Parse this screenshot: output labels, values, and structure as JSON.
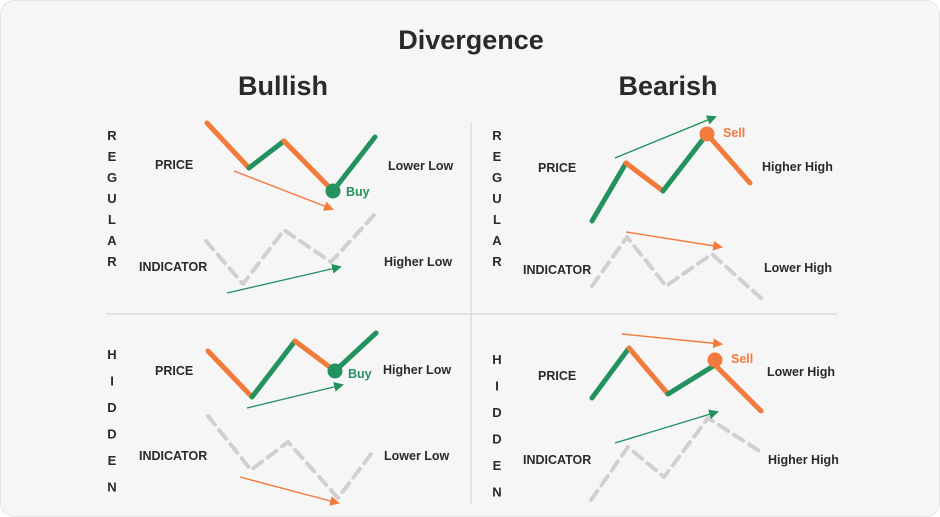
{
  "title": "Divergence",
  "columns": {
    "bullish": "Bullish",
    "bearish": "Bearish"
  },
  "rows": {
    "regular": "REGULAR",
    "hidden": "HIDDEN"
  },
  "colors": {
    "green": "#23925f",
    "orange": "#f27a3b",
    "gray": "#d0d0d0",
    "divider": "#d6d6d6"
  },
  "panels": {
    "bullish_regular": {
      "price": "PRICE",
      "indicator": "INDICATOR",
      "price_note": "Lower Low",
      "indicator_note": "Higher Low",
      "signal": "Buy"
    },
    "bearish_regular": {
      "price": "PRICE",
      "indicator": "INDICATOR",
      "price_note": "Higher High",
      "indicator_note": "Lower High",
      "signal": "Sell"
    },
    "bullish_hidden": {
      "price": "PRICE",
      "indicator": "INDICATOR",
      "price_note": "Higher Low",
      "indicator_note": "Lower Low",
      "signal": "Buy"
    },
    "bearish_hidden": {
      "price": "PRICE",
      "indicator": "INDICATOR",
      "price_note": "Lower High",
      "indicator_note": "Higher High",
      "signal": "Sell"
    }
  }
}
